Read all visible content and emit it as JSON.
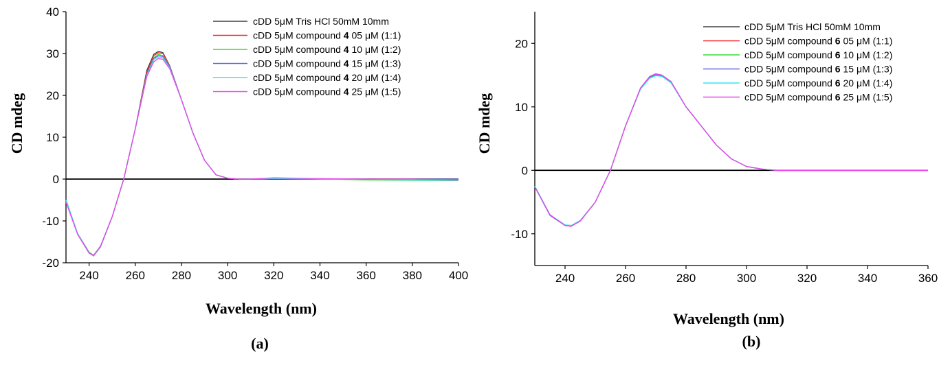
{
  "chart_data": [
    {
      "panel_label": "(a)",
      "type": "line",
      "xlabel": "Wavelength (nm)",
      "ylabel": "CD mdeg",
      "xlim": [
        230,
        400
      ],
      "ylim": [
        -20,
        40
      ],
      "xticks": [
        240,
        260,
        280,
        300,
        320,
        340,
        360,
        380,
        400
      ],
      "yticks": [
        -20,
        -10,
        0,
        10,
        20,
        30,
        40
      ],
      "legend_position": "top-right",
      "grid": false,
      "x": [
        230,
        235,
        240,
        242,
        245,
        250,
        255,
        260,
        265,
        268,
        270,
        272,
        275,
        280,
        285,
        290,
        295,
        300,
        305,
        310,
        320,
        340,
        360,
        380,
        400
      ],
      "series": [
        {
          "name": "cDD 5μM Tris HCl 50mM 10mm",
          "prefix": "cDD 5μM Tris HCl 50mM 10mm",
          "bold": "",
          "suffix": "",
          "color": "#404040",
          "values": [
            -5,
            -13,
            -17.5,
            -18.3,
            -16,
            -9,
            0,
            12,
            26,
            29.8,
            30.5,
            30.2,
            27,
            19,
            11,
            4.5,
            1,
            0.2,
            0,
            0,
            0.2,
            0,
            0,
            0,
            0
          ]
        },
        {
          "name": "cDD 5μM compound 4 05 μM (1:1)",
          "prefix": "cDD 5μM compound ",
          "bold": "4",
          "suffix": " 05 μM (1:1)",
          "color": "#ff2020",
          "values": [
            -5,
            -13,
            -17.6,
            -18.2,
            -16,
            -9,
            0,
            12,
            25.5,
            29.5,
            30.2,
            30,
            27,
            19,
            11,
            4.5,
            1,
            0.2,
            0,
            0,
            0.2,
            0,
            0,
            0,
            -0.2
          ]
        },
        {
          "name": "cDD 5μM compound 4 10 μM (1:2)",
          "prefix": "cDD 5μM compound ",
          "bold": "4",
          "suffix": " 10 μM (1:2)",
          "color": "#33dd33",
          "values": [
            -5,
            -13,
            -17.5,
            -18.2,
            -16,
            -9,
            0,
            12,
            25,
            29,
            29.8,
            29.5,
            26.8,
            19,
            11,
            4.5,
            1,
            0.2,
            0,
            0,
            0.1,
            0,
            -0.2,
            -0.3,
            -0.4
          ]
        },
        {
          "name": "cDD 5μM compound 4 15 μM (1:3)",
          "prefix": "cDD 5μM compound ",
          "bold": "4",
          "suffix": " 15 μM (1:3)",
          "color": "#6666ee",
          "values": [
            -5,
            -13,
            -17.6,
            -18.3,
            -16,
            -9,
            0,
            12,
            25,
            28.8,
            29.5,
            29.3,
            26.8,
            19,
            11,
            4.5,
            1,
            0.2,
            0,
            0,
            0.1,
            0,
            0,
            0,
            0
          ]
        },
        {
          "name": "cDD 5μM compound 4 20 μM (1:4)",
          "prefix": "cDD 5μM compound ",
          "bold": "4",
          "suffix": " 20 μM (1:4)",
          "color": "#33e6f0",
          "values": [
            -5,
            -13,
            -17.7,
            -18.4,
            -16.2,
            -9,
            0,
            12,
            24.8,
            28.5,
            29.2,
            29,
            26.5,
            19,
            11,
            4.5,
            1,
            0.2,
            0,
            0,
            0.1,
            0,
            0,
            -0.2,
            -0.3
          ]
        },
        {
          "name": "cDD 5μM compound 4 25 μM (1:5)",
          "prefix": "cDD 5μM compound ",
          "bold": "4",
          "suffix": " 25 μM (1:5)",
          "color": "#ee44ee",
          "values": [
            -5.5,
            -13.2,
            -17.7,
            -18.3,
            -16.1,
            -9,
            0,
            12,
            24.5,
            28,
            28.8,
            28.6,
            26.3,
            19,
            11,
            4.5,
            1,
            0.2,
            0,
            0,
            0.3,
            0.1,
            0,
            0,
            -0.2
          ]
        }
      ]
    },
    {
      "panel_label": "(b)",
      "type": "line",
      "xlabel": "Wavelength (nm)",
      "ylabel": "CD mdeg",
      "xlim": [
        230,
        360
      ],
      "ylim": [
        -15,
        25
      ],
      "xticks": [
        240,
        260,
        280,
        300,
        320,
        340,
        360
      ],
      "yticks": [
        -10,
        0,
        10,
        20
      ],
      "legend_position": "top-right",
      "grid": false,
      "x": [
        230,
        235,
        240,
        242,
        245,
        250,
        255,
        260,
        265,
        268,
        270,
        272,
        275,
        280,
        285,
        290,
        295,
        300,
        305,
        310,
        320,
        340,
        360
      ],
      "series": [
        {
          "name": "cDD 5μM Tris HCl 50mM 10mm",
          "prefix": "cDD 5μM Tris HCl 50mM 10mm",
          "bold": "",
          "suffix": "",
          "color": "#404040",
          "values": [
            -2.5,
            -7,
            -8.7,
            -8.8,
            -8,
            -5,
            0,
            7,
            13,
            14.8,
            15.2,
            15,
            14,
            10,
            7,
            4,
            1.8,
            0.6,
            0.2,
            0,
            0,
            0,
            0
          ]
        },
        {
          "name": "cDD 5μM compound 6 05 μM (1:1)",
          "prefix": "cDD 5μM compound ",
          "bold": "6",
          "suffix": " 05 μM (1:1)",
          "color": "#ff2020",
          "values": [
            -2.6,
            -7,
            -8.7,
            -8.8,
            -8,
            -5,
            0,
            7,
            13,
            14.7,
            15.1,
            15,
            14,
            10,
            7,
            4,
            1.8,
            0.6,
            0.2,
            0,
            0,
            0,
            0
          ]
        },
        {
          "name": "cDD 5μM compound 6 10 μM (1:2)",
          "prefix": "cDD 5μM compound ",
          "bold": "6",
          "suffix": " 10 μM (1:2)",
          "color": "#33dd33",
          "values": [
            -2.5,
            -7,
            -8.6,
            -8.7,
            -8,
            -5,
            0,
            7,
            12.9,
            14.6,
            15,
            14.9,
            13.9,
            10,
            7,
            4,
            1.8,
            0.6,
            0.2,
            0,
            0,
            0,
            0
          ]
        },
        {
          "name": "cDD 5μM compound 6 15 μM (1:3)",
          "prefix": "cDD 5μM compound ",
          "bold": "6",
          "suffix": " 15 μM (1:3)",
          "color": "#6666ee",
          "values": [
            -2.6,
            -7.1,
            -8.7,
            -8.8,
            -8,
            -5,
            0,
            7,
            12.9,
            14.7,
            15.1,
            14.9,
            13.9,
            10,
            7,
            4,
            1.8,
            0.6,
            0.2,
            0,
            0,
            0,
            0
          ]
        },
        {
          "name": "cDD 5μM compound 6 20 μM (1:4)",
          "prefix": "cDD 5μM compound ",
          "bold": "6",
          "suffix": " 20 μM (1:4)",
          "color": "#33e6f0",
          "values": [
            -2.5,
            -7,
            -8.6,
            -8.7,
            -7.9,
            -5,
            0,
            7,
            12.8,
            14.5,
            14.9,
            14.8,
            13.8,
            10,
            7,
            4,
            1.8,
            0.6,
            0.2,
            0,
            0,
            0,
            0
          ]
        },
        {
          "name": "cDD 5μM compound 6 25 μM (1:5)",
          "prefix": "cDD 5μM compound ",
          "bold": "6",
          "suffix": " 25 μM (1:5)",
          "color": "#ee44ee",
          "values": [
            -2.6,
            -7,
            -8.7,
            -8.8,
            -8,
            -5,
            0,
            7,
            13,
            14.8,
            15.2,
            15,
            14,
            10,
            7,
            4,
            1.8,
            0.6,
            0.2,
            0,
            0,
            0,
            0
          ]
        }
      ]
    }
  ]
}
